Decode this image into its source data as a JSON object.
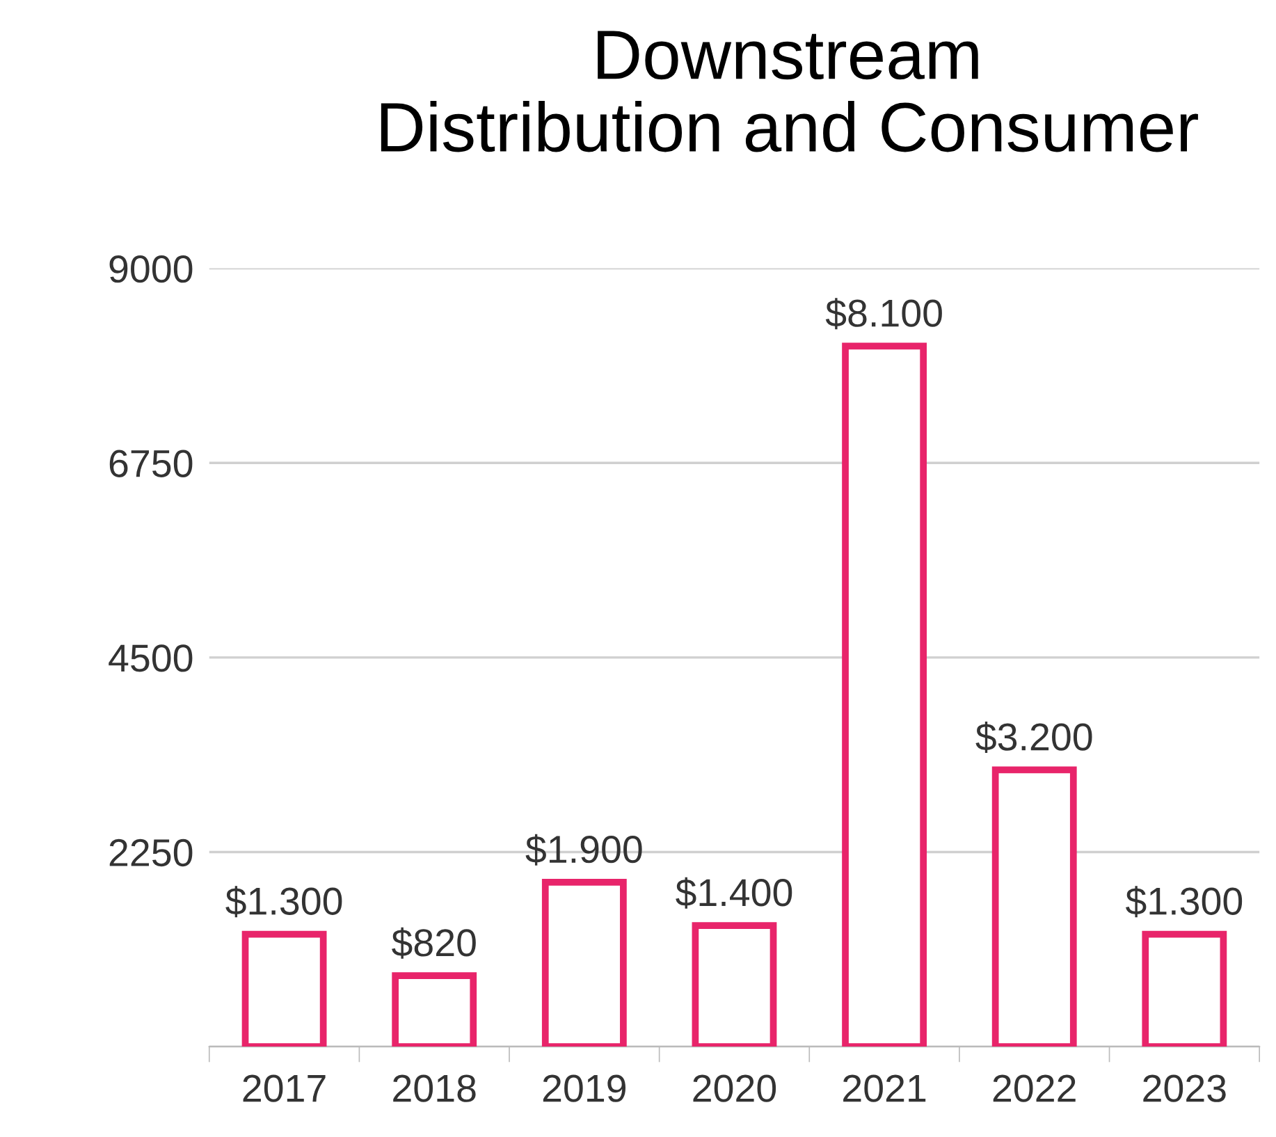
{
  "chart_data": {
    "type": "bar",
    "title": "Downstream\nDistribution and Consumer",
    "categories": [
      "2017",
      "2018",
      "2019",
      "2020",
      "2021",
      "2022",
      "2023"
    ],
    "values": [
      1300,
      820,
      1900,
      1400,
      8100,
      3200,
      1300
    ],
    "value_labels": [
      "$1.300",
      "$820",
      "$1.900",
      "$1.400",
      "$8.100",
      "$3.200",
      "$1.300"
    ],
    "color": "#e8246a",
    "ylim": [
      0,
      9000
    ],
    "yticks": [
      {
        "value": 0,
        "label": null
      },
      2250,
      4500,
      6750,
      9000
    ],
    "grid": "y"
  }
}
